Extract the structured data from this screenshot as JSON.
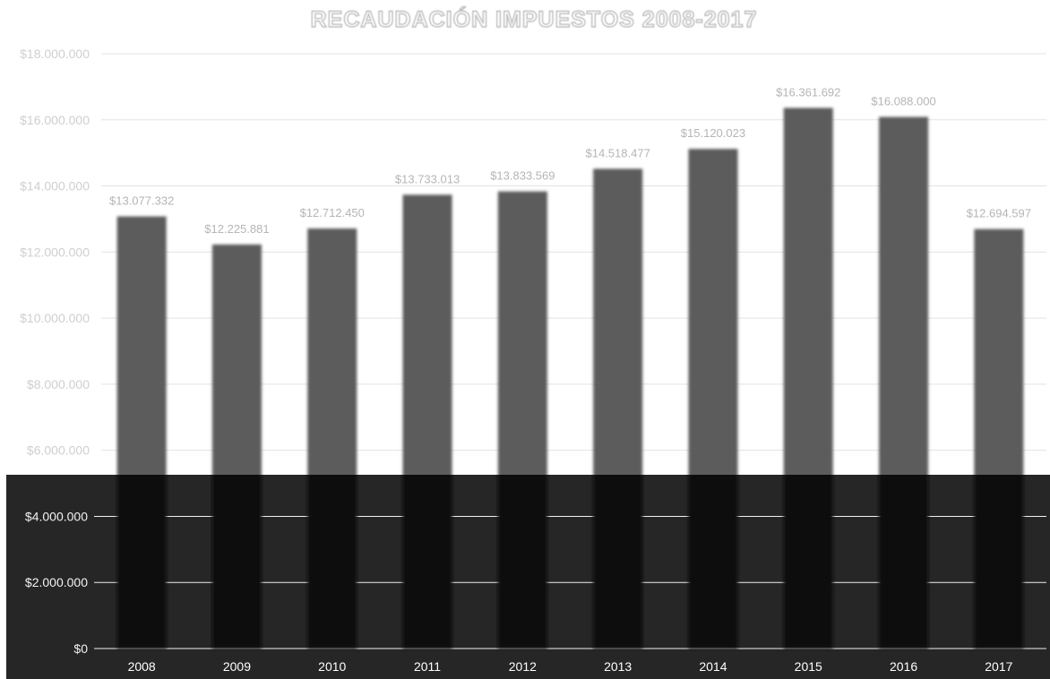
{
  "chart_data": {
    "type": "bar",
    "title": "RECAUDACIÓN IMPUESTOS 2008-2017",
    "xlabel": "",
    "ylabel": "",
    "categories": [
      "2008",
      "2009",
      "2010",
      "2011",
      "2012",
      "2013",
      "2014",
      "2015",
      "2016",
      "2017"
    ],
    "values": [
      13077332,
      12225881,
      12712450,
      13733013,
      13833569,
      14518477,
      15120023,
      16361692,
      16088000,
      12694597
    ],
    "data_labels": [
      "$13.077.332",
      "$12.225.881",
      "$12.712.450",
      "$13.733.013",
      "$13.833.569",
      "$14.518.477",
      "$15.120.023",
      "$16.361.692",
      "$16.088.000",
      "$12.694.597"
    ],
    "ylim": [
      0,
      18000000
    ],
    "yticks": [
      0,
      2000000,
      4000000,
      6000000,
      8000000,
      10000000,
      12000000,
      14000000,
      16000000,
      18000000
    ],
    "ytick_labels": [
      "$0",
      "$2.000.000",
      "$4.000.000",
      "$6.000.000",
      "$8.000.000",
      "$10.000.000",
      "$12.000.000",
      "$14.000.000",
      "$16.000.000",
      "$18.000.000"
    ],
    "grid": true,
    "legend": "none",
    "colors": {
      "bar": "#5b5b5b",
      "bar_on_dark": "#111111",
      "dark_panel": "#262626"
    }
  }
}
